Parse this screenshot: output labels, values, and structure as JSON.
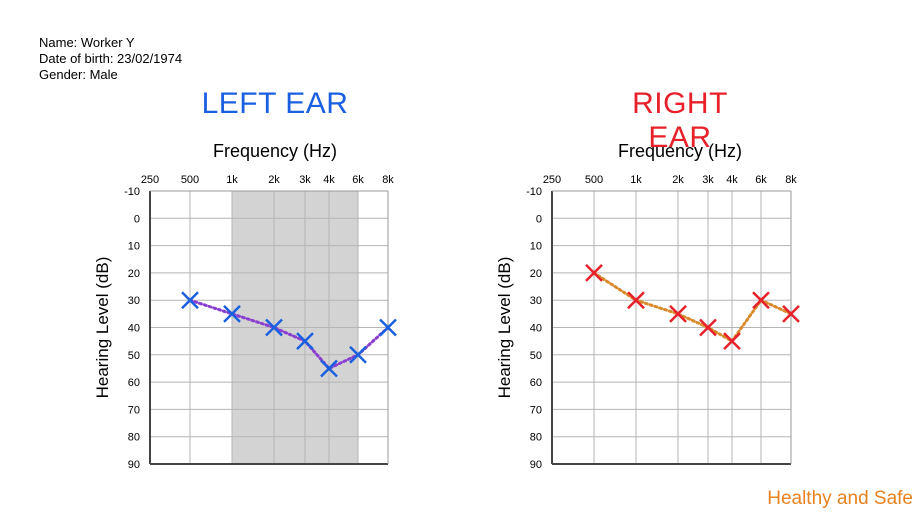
{
  "patient": {
    "name": "Name: Worker Y",
    "dob": "Date of birth: 23/02/1974",
    "gender": "Gender: Male"
  },
  "colors": {
    "left_title": "#1a5fe0",
    "right_title": "#e8202a",
    "left_marker": "#1a5fe0",
    "right_marker": "#e8202a",
    "left_line": "#8a3fd1",
    "right_line": "#d98a2a",
    "shade": "#d3d3d3",
    "brand": "#e8821e"
  },
  "brand": "Healthy and Safe",
  "chart_data": [
    {
      "type": "line",
      "title": "LEFT EAR",
      "xlabel": "Frequency (Hz)",
      "ylabel": "Hearing Level (dB)",
      "x_tick_labels": [
        "250",
        "500",
        "1k",
        "2k",
        "3k",
        "4k",
        "6k",
        "8k"
      ],
      "y_tick_labels": [
        "-10",
        "0",
        "10",
        "20",
        "30",
        "40",
        "50",
        "60",
        "70",
        "80",
        "90"
      ],
      "ylim": [
        -10,
        90
      ],
      "y_inverted": true,
      "grid": true,
      "shaded_x_range": [
        "1k",
        "6k"
      ],
      "series": [
        {
          "x": [
            "500",
            "1k",
            "2k",
            "3k",
            "4k",
            "6k",
            "8k"
          ],
          "values": [
            30,
            35,
            40,
            45,
            55,
            50,
            40
          ]
        }
      ]
    },
    {
      "type": "line",
      "title": "RIGHT EAR",
      "xlabel": "Frequency (Hz)",
      "ylabel": "Hearing Level (dB)",
      "x_tick_labels": [
        "250",
        "500",
        "1k",
        "2k",
        "3k",
        "4k",
        "6k",
        "8k"
      ],
      "y_tick_labels": [
        "-10",
        "0",
        "10",
        "20",
        "30",
        "40",
        "50",
        "60",
        "70",
        "80",
        "90"
      ],
      "ylim": [
        -10,
        90
      ],
      "y_inverted": true,
      "grid": true,
      "series": [
        {
          "x": [
            "500",
            "1k",
            "2k",
            "3k",
            "4k",
            "6k",
            "8k"
          ],
          "values": [
            20,
            30,
            35,
            40,
            45,
            30,
            35
          ]
        }
      ]
    }
  ]
}
